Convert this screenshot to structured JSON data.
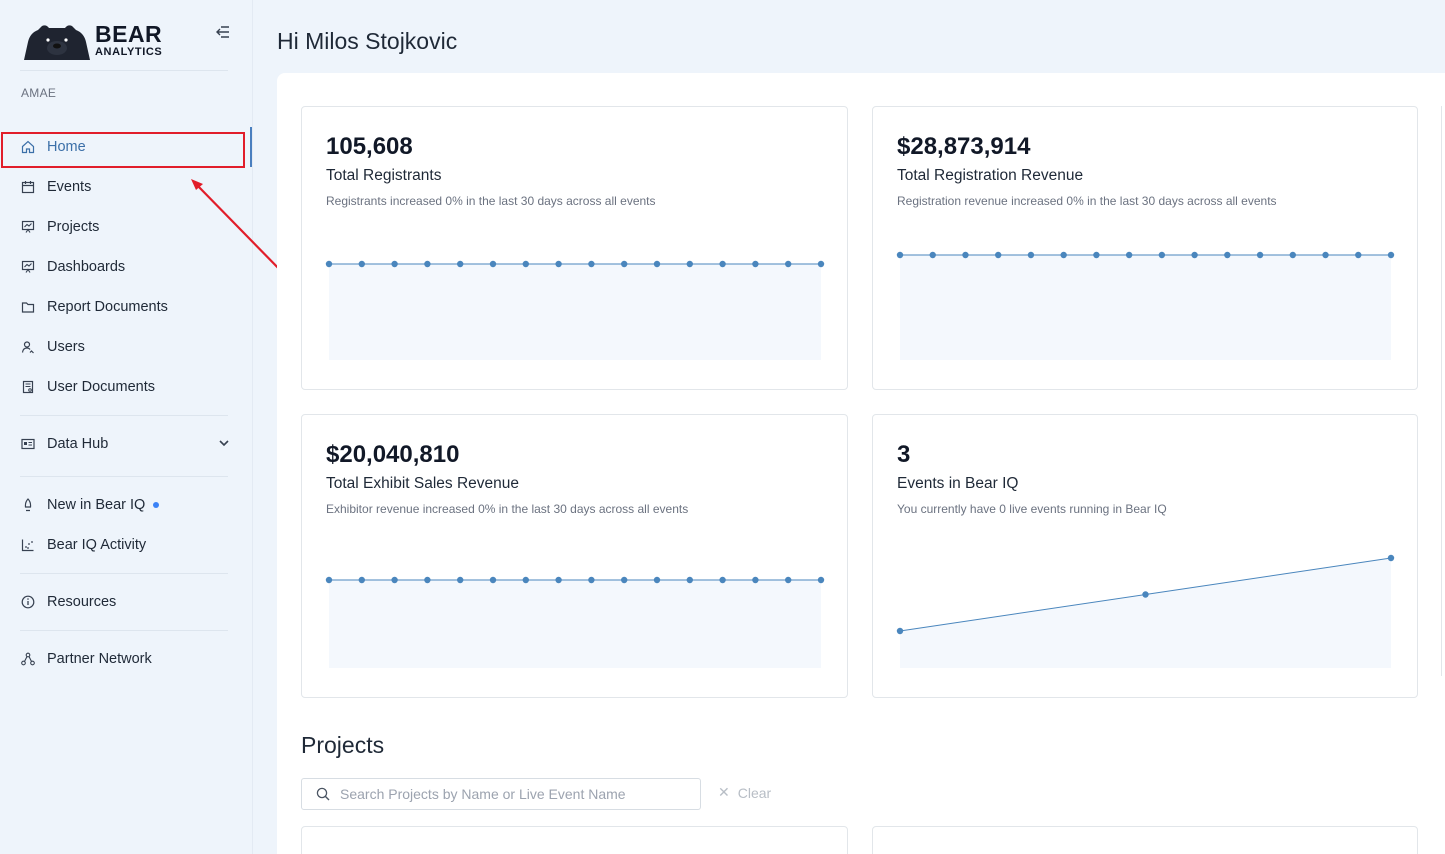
{
  "brand": {
    "name": "BEAR",
    "tagline": "ANALYTICS"
  },
  "org": "AMAE",
  "nav": {
    "home": "Home",
    "events": "Events",
    "projects": "Projects",
    "dashboards": "Dashboards",
    "report_documents": "Report Documents",
    "users": "Users",
    "user_documents": "User Documents",
    "data_hub": "Data Hub",
    "new_in_bear_iq": "New in Bear IQ",
    "bear_iq_activity": "Bear IQ Activity",
    "resources": "Resources",
    "partner_network": "Partner Network"
  },
  "header": {
    "greeting": "Hi Milos Stojkovic"
  },
  "cards": [
    {
      "value": "105,608",
      "label": "Total Registrants",
      "sub": "Registrants increased 0% in the last 30 days across all events"
    },
    {
      "value": "$28,873,914",
      "label": "Total Registration Revenue",
      "sub": "Registration revenue increased 0% in the last 30 days across all events"
    },
    {
      "value": "$20,040,810",
      "label": "Total Exhibit Sales Revenue",
      "sub": "Exhibitor revenue increased 0% in the last 30 days across all events"
    },
    {
      "value": "3",
      "label": "Events in Bear IQ",
      "sub": "You currently have 0 live events running in Bear IQ"
    }
  ],
  "projects": {
    "title": "Projects",
    "search_placeholder": "Search Projects by Name or Live Event Name",
    "clear_label": "Clear"
  },
  "chart_data": [
    {
      "type": "area",
      "title": "Total Registrants",
      "series": [
        {
          "name": "trend",
          "values": [
            0,
            0,
            0,
            0,
            0,
            0,
            0,
            0,
            0,
            0,
            0,
            0,
            0,
            0,
            0,
            0
          ]
        }
      ]
    },
    {
      "type": "area",
      "title": "Total Registration Revenue",
      "series": [
        {
          "name": "trend",
          "values": [
            0,
            0,
            0,
            0,
            0,
            0,
            0,
            0,
            0,
            0,
            0,
            0,
            0,
            0,
            0,
            0
          ]
        }
      ]
    },
    {
      "type": "area",
      "title": "Total Exhibit Sales Revenue",
      "series": [
        {
          "name": "trend",
          "values": [
            0,
            0,
            0,
            0,
            0,
            0,
            0,
            0,
            0,
            0,
            0,
            0,
            0,
            0,
            0,
            0
          ]
        }
      ]
    },
    {
      "type": "area",
      "title": "Events in Bear IQ",
      "series": [
        {
          "name": "trend",
          "values": [
            1,
            2,
            3
          ]
        }
      ]
    }
  ],
  "colors": {
    "accent": "#3b6fa8",
    "chart_line": "#4a86bd",
    "annotation": "#e11d2a"
  }
}
